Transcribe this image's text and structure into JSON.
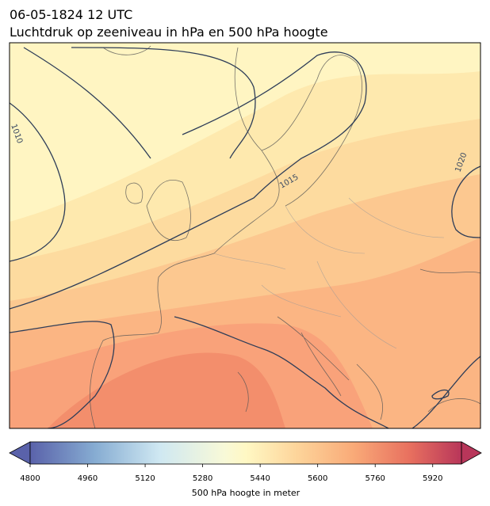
{
  "header": {
    "title_line1": "06-05-1824 12 UTC",
    "title_line2": "Luchtdruk op zeeniveau in hPa en 500 hPa hoogte"
  },
  "map": {
    "contour_labels": [
      "1010",
      "1015",
      "1020"
    ]
  },
  "colorbar": {
    "label": "500 hPa hoogte in meter",
    "lim": [
      4800,
      6000
    ],
    "ticks": [
      4800,
      4960,
      5120,
      5280,
      5440,
      5600,
      5760,
      5920
    ]
  }
}
